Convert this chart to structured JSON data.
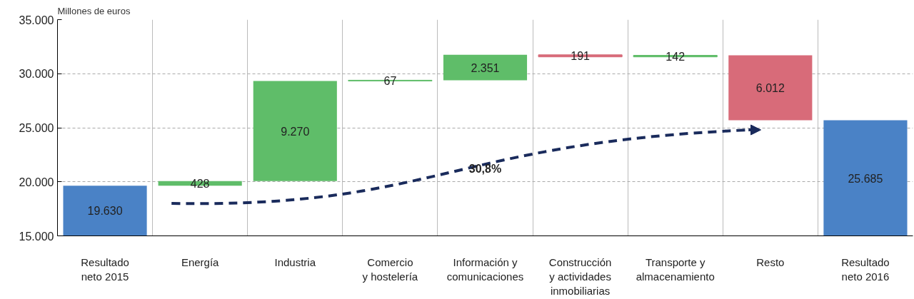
{
  "chart_data": {
    "type": "bar",
    "ylabel": "Millones de euros",
    "categories": [
      "Resultado\nneto 2015",
      "Energía",
      "Industria",
      "Comercio\ny hostelería",
      "Información y\ncomunicaciones",
      "Construcción\ny actividades\ninmobiliarias",
      "Transporte y\nalmacenamiento",
      "Resto",
      "Resultado\nneto 2016"
    ],
    "values": [
      19630,
      428,
      9270,
      67,
      2351,
      -191,
      142,
      -6012,
      25685
    ],
    "base": [
      null,
      19630,
      20058,
      29328,
      29395,
      31746,
      31555,
      31697,
      null
    ],
    "colors": [
      "#4a82c6",
      "#5fbd69",
      "#5fbd69",
      "#5fbd69",
      "#5fbd69",
      "#d86b79",
      "#5fbd69",
      "#d86b79",
      "#4a82c6"
    ],
    "value_labels": [
      "19.630",
      "428",
      "9.270",
      "67",
      "2.351",
      "191",
      "142",
      "6.012",
      "25.685"
    ],
    "ylim": [
      15000,
      35000
    ],
    "yticks": [
      {
        "value": 15000,
        "label": "15.000"
      },
      {
        "value": 20000,
        "label": "20.000"
      },
      {
        "value": 25000,
        "label": "25.000"
      },
      {
        "value": 30000,
        "label": "30.000"
      },
      {
        "value": 35000,
        "label": "35.000"
      }
    ],
    "grid": true,
    "annotations": [
      "30,8%"
    ]
  }
}
